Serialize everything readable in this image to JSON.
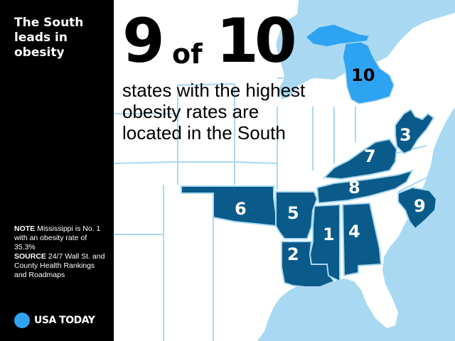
{
  "sidebar": {
    "title": "The South leads in obesity",
    "note_label": "NOTE",
    "note_text": "Mississippi is No. 1 with an obesity rate of 35.3%",
    "source_label": "SOURCE",
    "source_text": "24/7 Wall St. and County Health Rankings and Roadmaps",
    "logo_text": "USA TODAY"
  },
  "headline": {
    "number": "9",
    "connector": "of",
    "total": "10",
    "subhead": "states with the highest obesity rates are located in the South"
  },
  "map": {
    "colors": {
      "background": "#a9d9f2",
      "land": "#ffffff",
      "borders": "#a9d9f2",
      "highlight_south": "#0a5a8a",
      "highlight_michigan": "#2ea3f2"
    },
    "ranked_states": [
      {
        "rank": "1",
        "state": "Mississippi"
      },
      {
        "rank": "2",
        "state": "Louisiana"
      },
      {
        "rank": "3",
        "state": "West Virginia"
      },
      {
        "rank": "4",
        "state": "Alabama"
      },
      {
        "rank": "5",
        "state": "Arkansas"
      },
      {
        "rank": "6",
        "state": "Oklahoma"
      },
      {
        "rank": "7",
        "state": "Kentucky"
      },
      {
        "rank": "8",
        "state": "Tennessee"
      },
      {
        "rank": "9",
        "state": "South Carolina"
      },
      {
        "rank": "10",
        "state": "Michigan"
      }
    ]
  }
}
